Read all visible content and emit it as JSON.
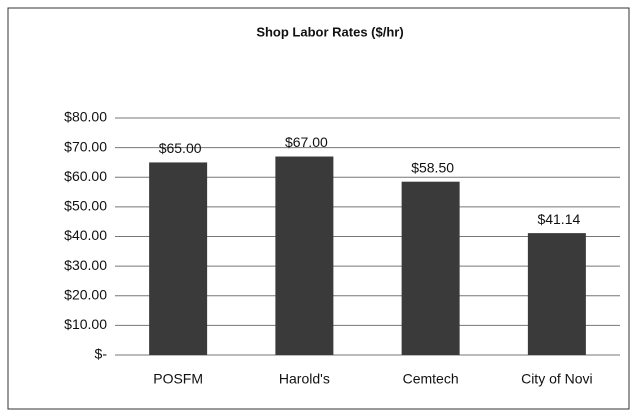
{
  "chart_data": {
    "type": "bar",
    "title": "Shop Labor Rates ($/hr)",
    "categories": [
      "POSFM",
      "Harold's",
      "Cemtech",
      "City of Novi"
    ],
    "values": [
      65,
      67,
      58.5,
      41.14
    ],
    "value_labels": [
      "$65.00",
      "$67.00",
      "$58.50",
      "$41.14"
    ],
    "color": "#3a3a3a",
    "ylim": [
      0,
      80
    ],
    "yticks": [
      {
        "value": 0,
        "label": "$-"
      },
      {
        "value": 10,
        "label": "$10.00"
      },
      {
        "value": 20,
        "label": "$20.00"
      },
      {
        "value": 30,
        "label": "$30.00"
      },
      {
        "value": 40,
        "label": "$40.00"
      },
      {
        "value": 50,
        "label": "$50.00"
      },
      {
        "value": 60,
        "label": "$60.00"
      },
      {
        "value": 70,
        "label": "$70.00"
      },
      {
        "value": 80,
        "label": "$80.00"
      }
    ],
    "grid": true
  }
}
